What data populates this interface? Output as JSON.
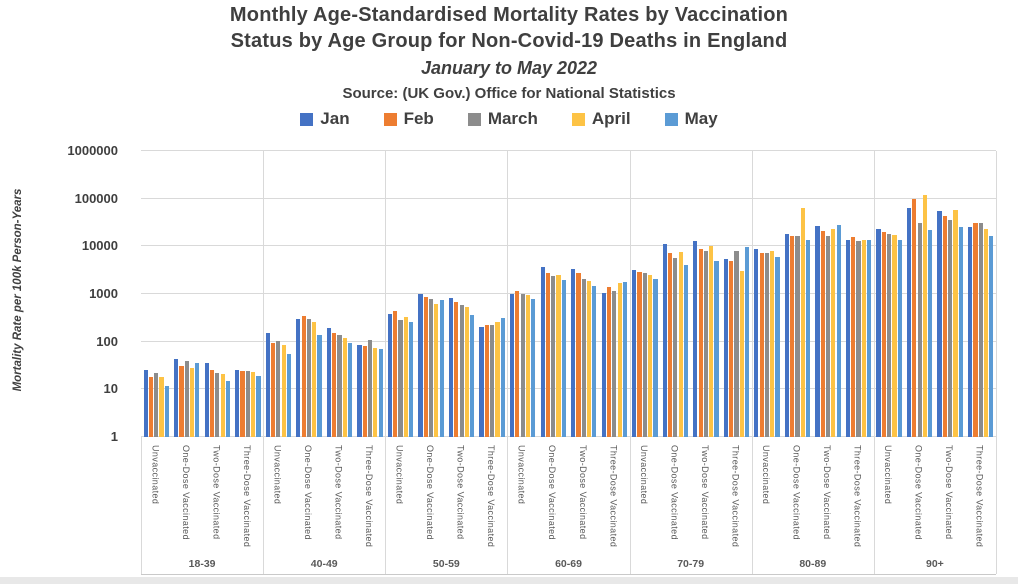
{
  "title": {
    "line1": "Monthly Age-Standardised Mortality Rates by Vaccination",
    "line2": "Status by Age Group for Non-Covid-19 Deaths in England",
    "subtitle": "January to May 2022",
    "source": "Source: (UK Gov.) Office for National Statistics"
  },
  "legend": [
    {
      "label": "Jan",
      "color": "#4472C4"
    },
    {
      "label": "Feb",
      "color": "#ED7D31"
    },
    {
      "label": "March",
      "color": "#8C8C8C"
    },
    {
      "label": "April",
      "color": "#FDC345"
    },
    {
      "label": "May",
      "color": "#5B9BD5"
    }
  ],
  "chart_data": {
    "type": "bar",
    "scale": "log",
    "title": "Monthly Age-Standardised Mortality Rates by Vaccination Status by Age Group for Non-Covid-19 Deaths in England, January to May 2022",
    "xlabel": "",
    "ylabel": "Mortality Rate per 100k Person-Years",
    "ylim": [
      1,
      1000000
    ],
    "yticks": [
      1,
      10,
      100,
      1000,
      10000,
      100000,
      1000000
    ],
    "grid": true,
    "legend_position": "top",
    "series": [
      {
        "name": "Jan",
        "color": "#4472C4"
      },
      {
        "name": "Feb",
        "color": "#ED7D31"
      },
      {
        "name": "March",
        "color": "#8C8C8C"
      },
      {
        "name": "April",
        "color": "#FDC345"
      },
      {
        "name": "May",
        "color": "#5B9BD5"
      }
    ],
    "categories": [
      "Unvaccinated",
      "One-Dose Vaccinated",
      "Two-Dose Vaccinated",
      "Three-Dose Vaccinated"
    ],
    "groups": [
      {
        "age": "18-39",
        "values": [
          [
            26,
            18,
            22,
            18,
            12
          ],
          [
            44,
            31,
            40,
            28,
            36
          ],
          [
            35,
            26,
            22,
            21,
            15
          ],
          [
            25,
            24,
            24,
            23,
            19
          ]
        ]
      },
      {
        "age": "40-49",
        "values": [
          [
            150,
            95,
            105,
            85,
            55
          ],
          [
            300,
            350,
            300,
            265,
            140
          ],
          [
            195,
            150,
            140,
            120,
            95
          ],
          [
            87,
            80,
            107,
            74,
            71
          ]
        ]
      },
      {
        "age": "50-59",
        "values": [
          [
            380,
            430,
            280,
            335,
            255
          ],
          [
            1000,
            850,
            800,
            630,
            740
          ],
          [
            830,
            670,
            575,
            525,
            360
          ],
          [
            200,
            225,
            220,
            260,
            310
          ]
        ]
      },
      {
        "age": "60-69",
        "values": [
          [
            1000,
            1150,
            1000,
            960,
            800
          ],
          [
            3700,
            2700,
            2400,
            2500,
            2000
          ],
          [
            3400,
            2700,
            2050,
            1870,
            1450
          ],
          [
            1050,
            1400,
            1130,
            1700,
            1780
          ]
        ]
      },
      {
        "age": "70-79",
        "values": [
          [
            3200,
            2900,
            2800,
            2500,
            2100
          ],
          [
            11000,
            7100,
            5600,
            7700,
            4100
          ],
          [
            13000,
            8800,
            8000,
            10000,
            4900
          ],
          [
            5400,
            4900,
            7900,
            3000,
            9700
          ]
        ]
      },
      {
        "age": "80-89",
        "values": [
          [
            8800,
            7300,
            7300,
            7900,
            6100
          ],
          [
            18400,
            16700,
            16200,
            63000,
            13300
          ],
          [
            27000,
            21300,
            16700,
            23100,
            28300
          ],
          [
            13300,
            15400,
            12700,
            13800,
            13300
          ]
        ]
      },
      {
        "age": "90+",
        "values": [
          [
            23000,
            19600,
            18400,
            17600,
            13300
          ],
          [
            64000,
            97000,
            31000,
            120000,
            21600
          ],
          [
            56000,
            44000,
            36000,
            59000,
            25000
          ],
          [
            26000,
            31000,
            31000,
            23500,
            16200
          ]
        ]
      }
    ]
  }
}
